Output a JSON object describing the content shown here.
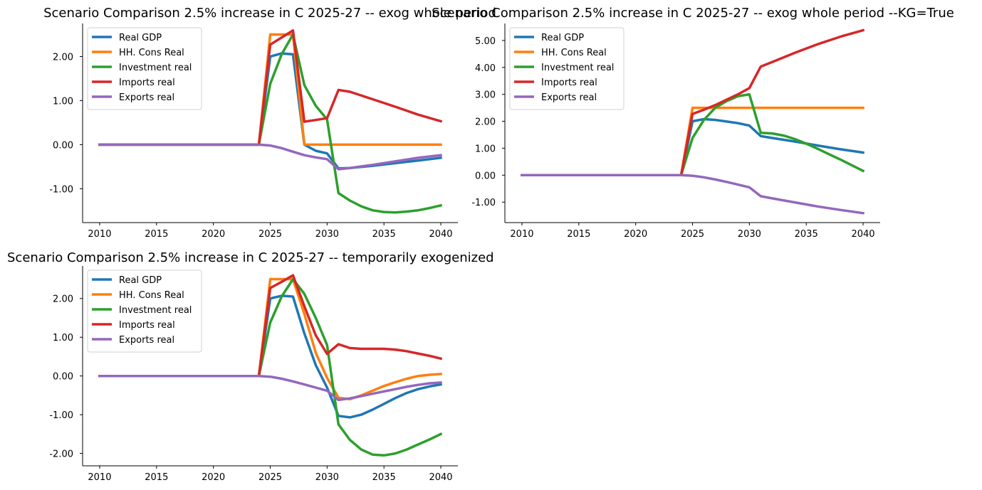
{
  "chart_data": [
    {
      "type": "line",
      "title": "Scenario Comparison 2.5% increase in C 2025-27 -- exog whole period",
      "xlabel": "",
      "ylabel": "",
      "xlim": [
        2008.5,
        2041.5
      ],
      "ylim": [
        -1.77,
        2.75
      ],
      "x_ticks": [
        "2010",
        "2015",
        "2020",
        "2025",
        "2030",
        "2035",
        "2040"
      ],
      "y_ticks": [
        "-1.00",
        "0.00",
        "1.00",
        "2.00"
      ],
      "legend_position": "top-left",
      "grid": false,
      "series": [
        {
          "name": "Real GDP",
          "color": "#1f77b4",
          "x": [
            2010,
            2024,
            2025,
            2026,
            2027,
            2028,
            2029,
            2030,
            2031,
            2032,
            2034,
            2036,
            2038,
            2040
          ],
          "y": [
            0,
            0,
            2.0,
            2.07,
            2.05,
            0.0,
            -0.14,
            -0.2,
            -0.54,
            -0.53,
            -0.48,
            -0.42,
            -0.36,
            -0.3
          ]
        },
        {
          "name": "HH. Cons Real",
          "color": "#ff7f0e",
          "x": [
            2010,
            2024,
            2025,
            2026,
            2027,
            2028,
            2040
          ],
          "y": [
            0,
            0,
            2.5,
            2.5,
            2.5,
            0,
            0
          ]
        },
        {
          "name": "Investment real",
          "color": "#2ca02c",
          "x": [
            2010,
            2024,
            2025,
            2026,
            2027,
            2028,
            2029,
            2030,
            2031,
            2032,
            2033,
            2034,
            2035,
            2036,
            2037,
            2038,
            2039,
            2040
          ],
          "y": [
            0,
            0,
            1.38,
            2.05,
            2.5,
            1.35,
            0.88,
            0.57,
            -1.1,
            -1.27,
            -1.4,
            -1.49,
            -1.53,
            -1.54,
            -1.52,
            -1.49,
            -1.44,
            -1.38
          ]
        },
        {
          "name": "Imports real",
          "color": "#d62728",
          "x": [
            2010,
            2024,
            2025,
            2026,
            2027,
            2028,
            2029,
            2030,
            2031,
            2032,
            2034,
            2036,
            2038,
            2040
          ],
          "y": [
            0,
            0,
            2.27,
            2.43,
            2.59,
            0.52,
            0.56,
            0.6,
            1.24,
            1.2,
            1.03,
            0.86,
            0.68,
            0.53
          ]
        },
        {
          "name": "Exports real",
          "color": "#9467bd",
          "x": [
            2010,
            2024,
            2025,
            2026,
            2027,
            2028,
            2029,
            2030,
            2031,
            2032,
            2034,
            2036,
            2038,
            2040
          ],
          "y": [
            0,
            0,
            -0.02,
            -0.08,
            -0.16,
            -0.24,
            -0.29,
            -0.33,
            -0.56,
            -0.53,
            -0.46,
            -0.38,
            -0.3,
            -0.24
          ]
        }
      ]
    },
    {
      "type": "line",
      "title": "Scenario Comparison 2.5% increase in C 2025-27 -- exog whole period --KG=True",
      "xlabel": "",
      "ylabel": "",
      "xlim": [
        2008.5,
        2041.5
      ],
      "ylim": [
        -1.76,
        5.63
      ],
      "x_ticks": [
        "2010",
        "2015",
        "2020",
        "2025",
        "2030",
        "2035",
        "2040"
      ],
      "y_ticks": [
        "-1.00",
        "0.00",
        "1.00",
        "2.00",
        "3.00",
        "4.00",
        "5.00"
      ],
      "legend_position": "top-left",
      "grid": false,
      "series": [
        {
          "name": "Real GDP",
          "color": "#1f77b4",
          "x": [
            2010,
            2024,
            2025,
            2026,
            2027,
            2028,
            2029,
            2030,
            2031,
            2032,
            2034,
            2036,
            2038,
            2040
          ],
          "y": [
            0,
            0,
            2.0,
            2.08,
            2.05,
            1.99,
            1.93,
            1.84,
            1.45,
            1.38,
            1.25,
            1.1,
            0.96,
            0.84
          ]
        },
        {
          "name": "HH. Cons Real",
          "color": "#ff7f0e",
          "x": [
            2010,
            2024,
            2025,
            2040
          ],
          "y": [
            0,
            0,
            2.5,
            2.5
          ]
        },
        {
          "name": "Investment real",
          "color": "#2ca02c",
          "x": [
            2010,
            2024,
            2025,
            2026,
            2027,
            2028,
            2029,
            2030,
            2031,
            2032,
            2033,
            2034,
            2035,
            2036,
            2037,
            2038,
            2039,
            2040
          ],
          "y": [
            0,
            0,
            1.38,
            2.05,
            2.5,
            2.75,
            2.93,
            3.0,
            1.57,
            1.55,
            1.47,
            1.34,
            1.17,
            0.98,
            0.78,
            0.58,
            0.37,
            0.16
          ]
        },
        {
          "name": "Imports real",
          "color": "#d62728",
          "x": [
            2010,
            2024,
            2025,
            2026,
            2027,
            2028,
            2029,
            2030,
            2031,
            2032,
            2034,
            2036,
            2038,
            2040
          ],
          "y": [
            0,
            0,
            2.27,
            2.43,
            2.6,
            2.8,
            3.0,
            3.23,
            4.03,
            4.2,
            4.54,
            4.86,
            5.14,
            5.38
          ]
        },
        {
          "name": "Exports real",
          "color": "#9467bd",
          "x": [
            2010,
            2024,
            2025,
            2026,
            2027,
            2028,
            2029,
            2030,
            2031,
            2032,
            2034,
            2036,
            2038,
            2040
          ],
          "y": [
            0,
            0,
            -0.02,
            -0.08,
            -0.16,
            -0.25,
            -0.35,
            -0.45,
            -0.78,
            -0.86,
            -1.01,
            -1.16,
            -1.29,
            -1.41
          ]
        }
      ]
    },
    {
      "type": "line",
      "title": "Scenario Comparison 2.5% increase in C 2025-27 -- temporarily exogenized",
      "xlabel": "",
      "ylabel": "",
      "xlim": [
        2008.5,
        2041.5
      ],
      "ylim": [
        -2.32,
        2.84
      ],
      "x_ticks": [
        "2010",
        "2015",
        "2020",
        "2025",
        "2030",
        "2035",
        "2040"
      ],
      "y_ticks": [
        "-2.00",
        "-1.00",
        "0.00",
        "1.00",
        "2.00"
      ],
      "legend_position": "top-left",
      "grid": false,
      "series": [
        {
          "name": "Real GDP",
          "color": "#1f77b4",
          "x": [
            2010,
            2024,
            2025,
            2026,
            2027,
            2028,
            2029,
            2030,
            2031,
            2032,
            2033,
            2034,
            2035,
            2036,
            2037,
            2038,
            2039,
            2040
          ],
          "y": [
            0,
            0,
            2.0,
            2.07,
            2.05,
            1.1,
            0.28,
            -0.3,
            -1.03,
            -1.07,
            -1.0,
            -0.87,
            -0.72,
            -0.57,
            -0.44,
            -0.34,
            -0.27,
            -0.22
          ]
        },
        {
          "name": "HH. Cons Real",
          "color": "#ff7f0e",
          "x": [
            2010,
            2024,
            2025,
            2026,
            2027,
            2028,
            2029,
            2030,
            2031,
            2032,
            2033,
            2034,
            2035,
            2036,
            2037,
            2038,
            2039,
            2040
          ],
          "y": [
            0,
            0,
            2.5,
            2.5,
            2.5,
            1.6,
            0.6,
            -0.05,
            -0.56,
            -0.6,
            -0.5,
            -0.38,
            -0.26,
            -0.16,
            -0.07,
            0.0,
            0.03,
            0.05
          ]
        },
        {
          "name": "Investment real",
          "color": "#2ca02c",
          "x": [
            2010,
            2024,
            2025,
            2026,
            2027,
            2028,
            2029,
            2030,
            2031,
            2032,
            2033,
            2034,
            2035,
            2036,
            2037,
            2038,
            2039,
            2040
          ],
          "y": [
            0,
            0,
            1.38,
            2.05,
            2.5,
            2.12,
            1.5,
            0.8,
            -1.25,
            -1.65,
            -1.9,
            -2.03,
            -2.05,
            -2.0,
            -1.9,
            -1.77,
            -1.64,
            -1.5
          ]
        },
        {
          "name": "Imports real",
          "color": "#d62728",
          "x": [
            2010,
            2024,
            2025,
            2026,
            2027,
            2028,
            2029,
            2030,
            2031,
            2032,
            2033,
            2034,
            2035,
            2036,
            2037,
            2038,
            2039,
            2040
          ],
          "y": [
            0,
            0,
            2.27,
            2.43,
            2.6,
            1.8,
            1.05,
            0.57,
            0.82,
            0.72,
            0.7,
            0.7,
            0.7,
            0.68,
            0.64,
            0.58,
            0.52,
            0.45
          ]
        },
        {
          "name": "Exports real",
          "color": "#9467bd",
          "x": [
            2010,
            2024,
            2025,
            2026,
            2027,
            2028,
            2029,
            2030,
            2031,
            2032,
            2033,
            2034,
            2035,
            2036,
            2037,
            2038,
            2039,
            2040
          ],
          "y": [
            0,
            0,
            -0.02,
            -0.07,
            -0.14,
            -0.22,
            -0.3,
            -0.38,
            -0.62,
            -0.58,
            -0.52,
            -0.46,
            -0.4,
            -0.34,
            -0.28,
            -0.23,
            -0.19,
            -0.17
          ]
        }
      ]
    }
  ]
}
